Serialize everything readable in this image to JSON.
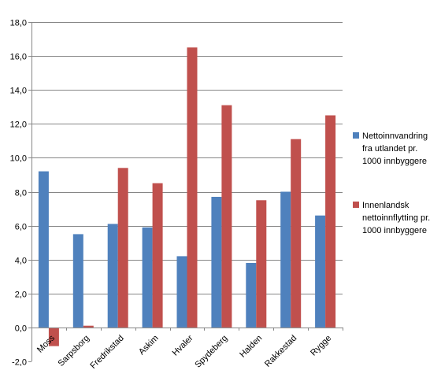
{
  "chart_data": {
    "type": "bar",
    "categories": [
      "Moss",
      "Sarpsborg",
      "Fredrikstad",
      "Askim",
      "Hvaler",
      "Spydeberg",
      "Halden",
      "Rakkestad",
      "Rygge"
    ],
    "series": [
      {
        "name": "Nettoinnvandring fra utlandet pr. 1000 innbyggere",
        "legend_lines": [
          "Nettoinnvandring",
          "fra utlandet pr.",
          "1000 innbyggere"
        ],
        "color": "#4F81BD",
        "values": [
          9.2,
          5.5,
          6.1,
          5.9,
          4.2,
          7.7,
          3.8,
          8.0,
          6.6
        ]
      },
      {
        "name": "Innenlandsk nettoinnflytting pr. 1000 innbyggere",
        "legend_lines": [
          "Innenlandsk",
          "nettoinnflytting pr.",
          "1000 innbyggere"
        ],
        "color": "#C0504D",
        "values": [
          -1.1,
          0.1,
          9.4,
          8.5,
          16.5,
          13.1,
          7.5,
          11.1,
          12.5
        ]
      }
    ],
    "ylim": [
      -2.0,
      18.0
    ],
    "yticks": [
      "-2,0",
      "0,0",
      "2,0",
      "4,0",
      "6,0",
      "8,0",
      "10,0",
      "12,0",
      "14,0",
      "16,0",
      "18,0"
    ],
    "grid": true,
    "legend_position": "right"
  }
}
